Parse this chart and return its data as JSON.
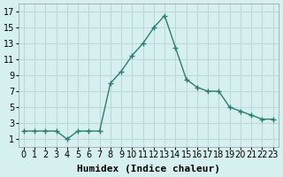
{
  "x": [
    0,
    1,
    2,
    3,
    4,
    5,
    6,
    7,
    8,
    9,
    10,
    11,
    12,
    13,
    14,
    15,
    16,
    17,
    18,
    19,
    20,
    21,
    22,
    23
  ],
  "y": [
    2,
    2,
    2,
    2,
    1,
    2,
    2,
    2,
    8,
    9.5,
    11.5,
    13,
    15,
    16.5,
    12.5,
    8.5,
    7.5,
    7,
    7,
    5,
    4.5,
    4,
    3.5,
    3.5
  ],
  "line_color": "#2d7d6e",
  "marker": "+",
  "marker_size": 4,
  "bg_color": "#d6f0f0",
  "grid_color": "#c0d8d8",
  "xlabel": "Humidex (Indice chaleur)",
  "xlabel_fontsize": 8,
  "ylim": [
    0,
    18
  ],
  "xlim": [
    -0.5,
    23.5
  ],
  "yticks": [
    1,
    3,
    5,
    7,
    9,
    11,
    13,
    15,
    17
  ],
  "xticks": [
    0,
    1,
    2,
    3,
    4,
    5,
    6,
    7,
    8,
    9,
    10,
    11,
    12,
    13,
    14,
    15,
    16,
    17,
    18,
    19,
    20,
    21,
    22,
    23
  ],
  "tick_fontsize": 7
}
